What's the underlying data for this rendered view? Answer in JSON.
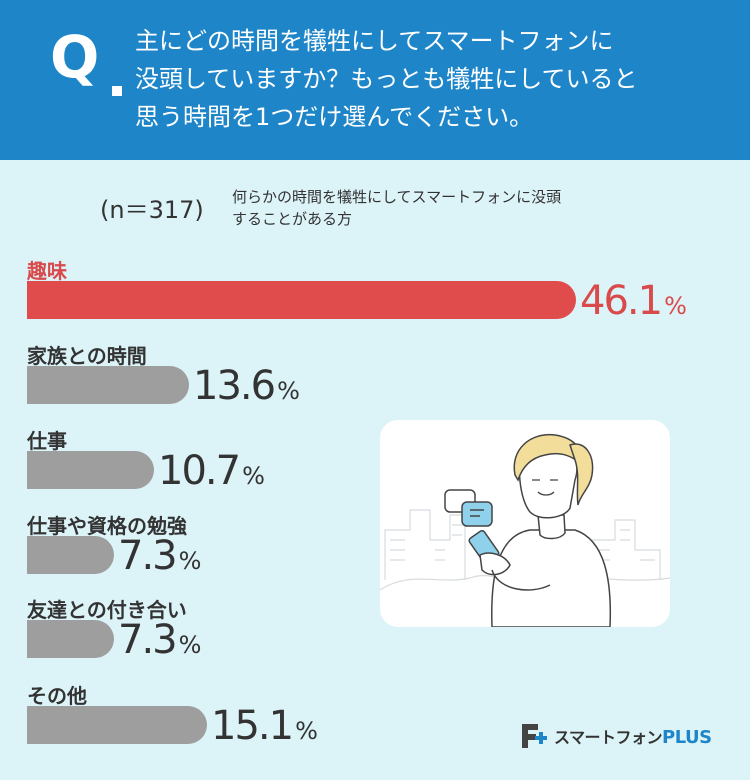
{
  "header": {
    "q_mark": "Q",
    "question_lines": [
      "主にどの時間を犠牲にしてスマートフォンに",
      "没頭していますか？もっとも犠牲にしていると",
      "思う時間を1つだけ選んでください。"
    ]
  },
  "sample_note": {
    "n": "(n＝317)",
    "description_lines": [
      "何らかの時間を犠牲にしてスマートフォンに没頭",
      "することがある方"
    ]
  },
  "chart_data": {
    "type": "bar",
    "orientation": "horizontal",
    "categories": [
      "趣味",
      "家族との時間",
      "仕事",
      "仕事や資格の勉強",
      "友達との付き合い",
      "その他"
    ],
    "values": [
      46.1,
      13.6,
      10.7,
      7.3,
      7.3,
      15.1
    ],
    "value_labels": [
      "46.1",
      "13.6",
      "10.7",
      "7.3",
      "7.3",
      "15.1"
    ],
    "unit": "%",
    "highlight_index": 0,
    "colors": {
      "highlight": "#e04b4b",
      "default": "#9e9e9e",
      "highlight_text": "#d94b4b"
    }
  },
  "logo": {
    "text": "スマートフォン",
    "plus": "PLUS"
  },
  "colors": {
    "header_bg": "#1e86c8",
    "page_bg": "#dcf3f8"
  }
}
